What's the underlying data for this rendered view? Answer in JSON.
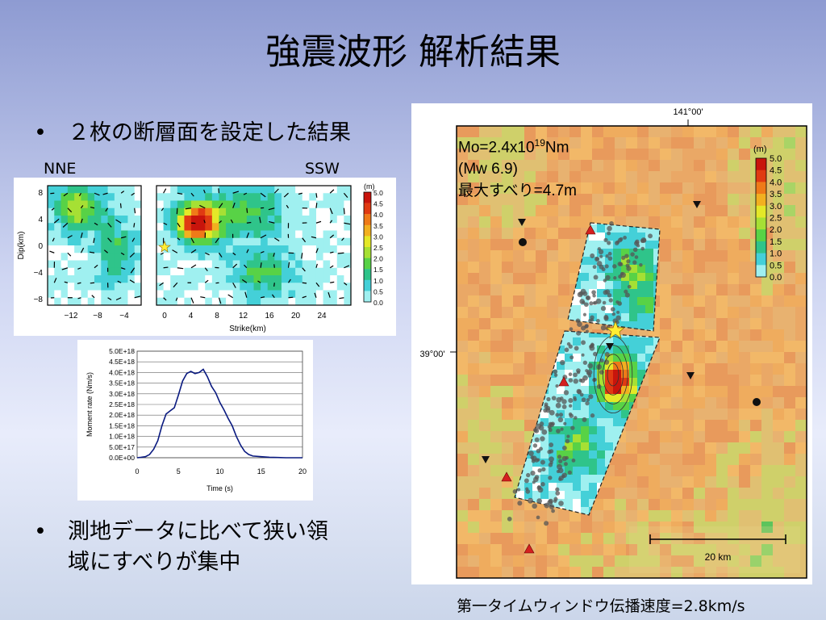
{
  "slide": {
    "title": "強震波形 解析結果",
    "bullets": [
      {
        "marker": "•",
        "text": "２枚の断層面を設定した結果"
      },
      {
        "marker": "•",
        "text_line1": "測地データに比べて狭い領",
        "text_line2": "域にすべりが集中"
      }
    ],
    "fault_labels": {
      "left": "NNE",
      "right": "SSW"
    },
    "map_caption": "第一タイムウィンドウ伝播速度=2.8km/s"
  },
  "slip_figure": {
    "y_axis_label": "Dip(km)",
    "x_axis_label": "Strike(km)",
    "y_ticks": [
      "8",
      "4",
      "0",
      "−4",
      "−8"
    ],
    "left_x_ticks": [
      "−12",
      "−8",
      "−4"
    ],
    "right_x_ticks": [
      "0",
      "4",
      "8",
      "12",
      "16",
      "20",
      "24"
    ],
    "colorbar_unit": "(m)",
    "colorbar_ticks": [
      "5.0",
      "4.5",
      "4.0",
      "3.5",
      "3.0",
      "2.5",
      "2.0",
      "1.5",
      "1.0",
      "0.5",
      "0.0"
    ]
  },
  "chart_data": {
    "type": "line",
    "xlabel": "Time (s)",
    "ylabel": "Moment rate (Nm/s)",
    "x_ticks": [
      "0",
      "5",
      "10",
      "15",
      "20"
    ],
    "y_ticks": [
      "5.0E+18",
      "4.5E+18",
      "4.0E+18",
      "3.5E+18",
      "3.0E+18",
      "2.5E+18",
      "2.0E+18",
      "1.5E+18",
      "1.0E+18",
      "5.0E+17",
      "0.0E+00"
    ],
    "xlim": [
      0,
      20
    ],
    "ylim": [
      0,
      5e+18
    ],
    "grid": true,
    "x": [
      0,
      0.5,
      1,
      1.5,
      2,
      2.5,
      3,
      3.5,
      4,
      4.5,
      5,
      5.5,
      6,
      6.5,
      7,
      7.5,
      8,
      8.5,
      9,
      9.5,
      10,
      10.5,
      11,
      11.5,
      12,
      12.5,
      13,
      13.5,
      14,
      15,
      16,
      17,
      18,
      20
    ],
    "values": [
      0,
      2e+16,
      5e+16,
      1.5e+17,
      4e+17,
      8e+17,
      1.5e+18,
      2.05e+18,
      2.2e+18,
      2.35e+18,
      2.95e+18,
      3.6e+18,
      3.95e+18,
      4.05e+18,
      3.95e+18,
      4e+18,
      4.15e+18,
      3.8e+18,
      3.35e+18,
      3.05e+18,
      2.6e+18,
      2.25e+18,
      1.85e+18,
      1.5e+18,
      1e+18,
      6e+17,
      3e+17,
      1.5e+17,
      8e+16,
      5e+16,
      2e+16,
      1e+16,
      0,
      0
    ]
  },
  "map": {
    "top_tick": "141°00'",
    "side_tick": "39°00'",
    "mo_line1_prefix": "Mo=2.4x10",
    "mo_line1_exp": "19",
    "mo_line1_unit": "Nm",
    "mw_line": "(Mw 6.9)",
    "max_slip": "最大すべり=4.7m",
    "colorbar_unit": "(m)",
    "colorbar_ticks": [
      "5.0",
      "4.5",
      "4.0",
      "3.5",
      "3.0",
      "2.5",
      "2.0",
      "1.5",
      "1.0",
      "0.5",
      "0.0"
    ],
    "scale_label": "20 km"
  },
  "colors": {
    "slip_scale": [
      "#ffffff",
      "#9ff0f0",
      "#44d0d8",
      "#2fc48a",
      "#58d246",
      "#a6e034",
      "#e4e828",
      "#f2b020",
      "#ef7a18",
      "#e03a12",
      "#c8140c"
    ],
    "rate_line": "#0a1a80",
    "map_background": "#e8a060"
  }
}
